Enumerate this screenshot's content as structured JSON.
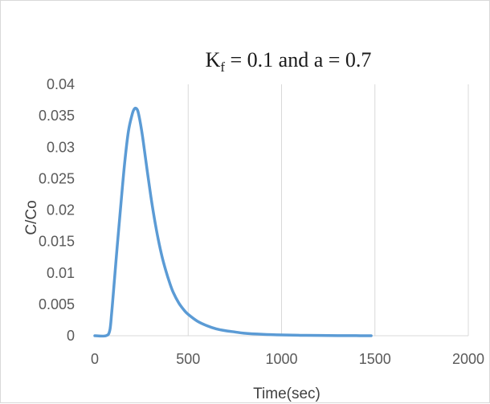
{
  "chart_data": {
    "type": "line",
    "title": {
      "prefix": "K",
      "subscript": "f",
      "suffix": " = 0.1 and a = 0.7"
    },
    "xlabel": "Time(sec)",
    "ylabel": "C/Co",
    "xlim": [
      0,
      2000
    ],
    "ylim": [
      0,
      0.04
    ],
    "x_ticks": [
      0,
      500,
      1000,
      1500,
      2000
    ],
    "y_ticks": [
      0,
      0.005,
      0.01,
      0.015,
      0.02,
      0.025,
      0.03,
      0.035,
      0.04
    ],
    "x_tick_labels": [
      "0",
      "500",
      "1000",
      "1500",
      "2000"
    ],
    "y_tick_labels": [
      "0",
      "0.005",
      "0.01",
      "0.015",
      "0.02",
      "0.025",
      "0.03",
      "0.035",
      "0.04"
    ],
    "grid": "vertical",
    "legend": "none",
    "series_color": "#5b9bd5",
    "series": [
      {
        "x": [
          0,
          60,
          80,
          90,
          100,
          120,
          140,
          160,
          180,
          200,
          210,
          220,
          230,
          240,
          250,
          260,
          280,
          300,
          320,
          340,
          360,
          380,
          400,
          420,
          450,
          480,
          500,
          550,
          600,
          650,
          700,
          750,
          800,
          900,
          1000,
          1100,
          1200,
          1300,
          1400,
          1480
        ],
        "y": [
          0,
          0,
          0.0008,
          0.0035,
          0.007,
          0.0142,
          0.021,
          0.0275,
          0.0325,
          0.0352,
          0.036,
          0.0362,
          0.0358,
          0.0345,
          0.0328,
          0.0308,
          0.0264,
          0.0222,
          0.0185,
          0.0153,
          0.0126,
          0.0104,
          0.0085,
          0.0069,
          0.0052,
          0.004,
          0.0034,
          0.0023,
          0.0016,
          0.0011,
          0.0008,
          0.0006,
          0.0004,
          0.00022,
          0.00012,
          7e-05,
          4e-05,
          2e-05,
          1e-05,
          0
        ]
      }
    ]
  }
}
